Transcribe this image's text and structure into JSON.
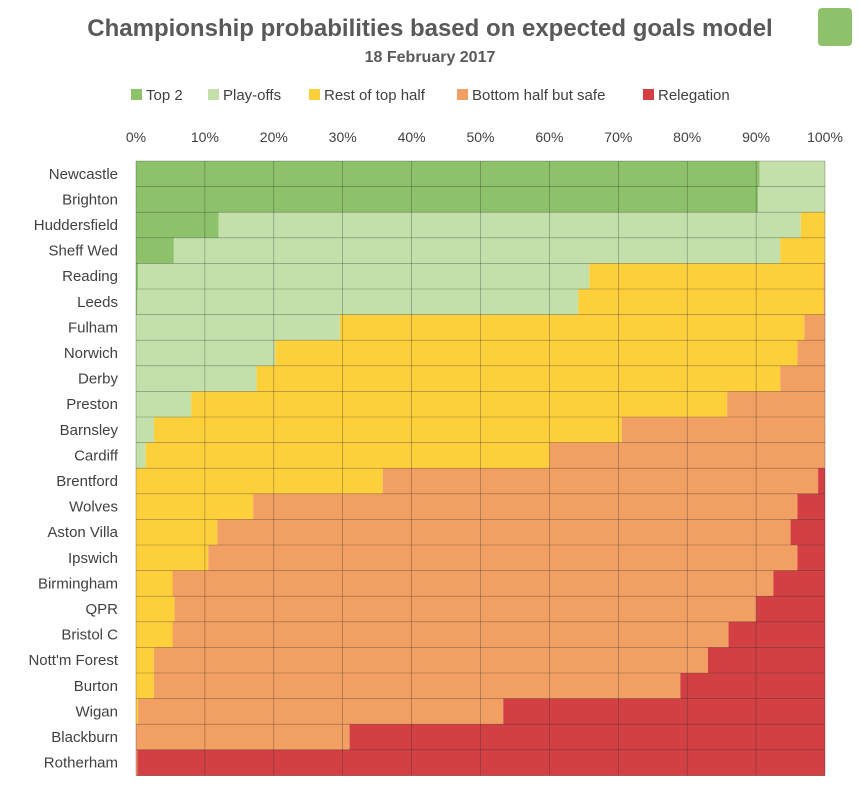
{
  "chart_data": {
    "type": "bar",
    "orientation": "horizontal",
    "stacked": true,
    "title": "Championship probabilities based on expected goals model",
    "subtitle": "18 February 2017",
    "xlim": [
      0,
      100
    ],
    "x_ticks": [
      "0%",
      "10%",
      "20%",
      "30%",
      "40%",
      "50%",
      "60%",
      "70%",
      "80%",
      "90%",
      "100%"
    ],
    "grid": true,
    "legend_position": "top",
    "categories": [
      "Newcastle",
      "Brighton",
      "Huddersfield",
      "Sheff Wed",
      "Reading",
      "Leeds",
      "Fulham",
      "Norwich",
      "Derby",
      "Preston",
      "Barnsley",
      "Cardiff",
      "Brentford",
      "Wolves",
      "Aston Villa",
      "Ipswich",
      "Birmingham",
      "QPR",
      "Bristol C",
      "Nott'm Forest",
      "Burton",
      "Wigan",
      "Blackburn",
      "Rotherham"
    ],
    "series": [
      {
        "name": "Top 2",
        "color": "#8dc26b",
        "values": [
          90.5,
          90.3,
          12.0,
          5.5,
          0.3,
          0.2,
          0,
          0,
          0,
          0,
          0,
          0,
          0,
          0,
          0,
          0,
          0,
          0,
          0,
          0,
          0,
          0,
          0,
          0
        ]
      },
      {
        "name": "Play-offs",
        "color": "#c4e0aa",
        "values": [
          9.5,
          9.7,
          84.5,
          88.0,
          65.5,
          64.0,
          29.6,
          20.2,
          17.5,
          8.0,
          2.6,
          1.4,
          0,
          0,
          0,
          0,
          0,
          0,
          0,
          0,
          0,
          0,
          0,
          0
        ]
      },
      {
        "name": "Rest of top half",
        "color": "#fdd03b",
        "values": [
          0,
          0,
          3.5,
          6.5,
          34.0,
          35.6,
          67.4,
          75.8,
          76.0,
          77.8,
          67.9,
          58.6,
          35.8,
          17.0,
          11.8,
          10.5,
          5.3,
          5.6,
          5.3,
          2.6,
          2.6,
          0.3,
          0,
          0
        ]
      },
      {
        "name": "Bottom half but safe",
        "color": "#f29f63",
        "values": [
          0,
          0,
          0,
          0,
          0.2,
          0.2,
          3.0,
          4.0,
          6.5,
          14.2,
          29.5,
          40.0,
          63.2,
          79.0,
          83.2,
          85.5,
          87.2,
          84.4,
          80.7,
          80.4,
          76.4,
          53.0,
          31.0,
          0.2
        ]
      },
      {
        "name": "Relegation",
        "color": "#d24044",
        "values": [
          0,
          0,
          0,
          0,
          0,
          0,
          0,
          0,
          0,
          0,
          0,
          0,
          1.0,
          4.0,
          5.0,
          4.0,
          7.5,
          10.0,
          14.0,
          17.0,
          21.0,
          46.7,
          69.0,
          99.8
        ]
      }
    ]
  }
}
